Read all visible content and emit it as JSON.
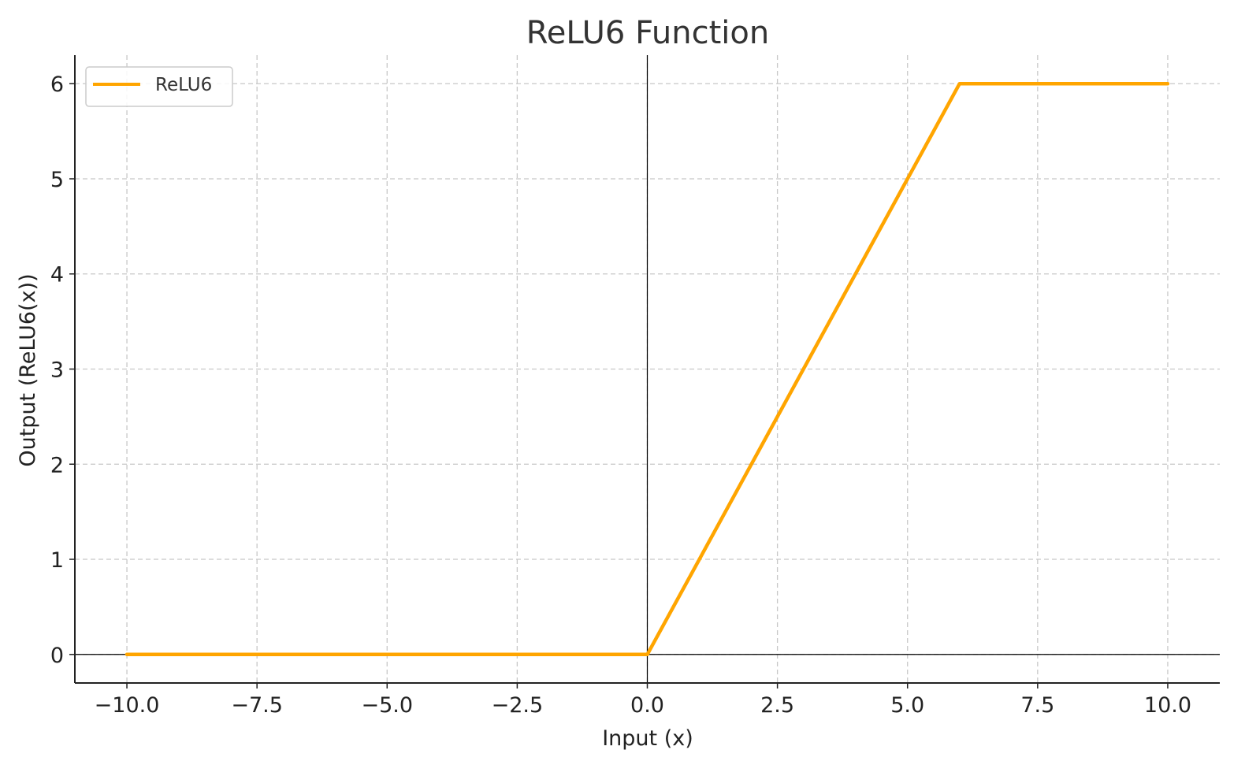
{
  "chart_data": {
    "type": "line",
    "title": "ReLU6 Function",
    "xlabel": "Input (x)",
    "ylabel": "Output (ReLU6(x))",
    "xlim": [
      -11,
      11
    ],
    "ylim": [
      -0.3,
      6.3
    ],
    "x_ticks": [
      -10,
      -7.5,
      -5,
      -2.5,
      0,
      2.5,
      5,
      7.5,
      10
    ],
    "x_tick_labels": [
      "−10.0",
      "−7.5",
      "−5.0",
      "−2.5",
      "0.0",
      "2.5",
      "5.0",
      "7.5",
      "10.0"
    ],
    "y_ticks": [
      0,
      1,
      2,
      3,
      4,
      5,
      6
    ],
    "y_tick_labels": [
      "0",
      "1",
      "2",
      "3",
      "4",
      "5",
      "6"
    ],
    "grid": true,
    "grid_style": "dashed",
    "reference_lines": {
      "x": 0,
      "y": 0
    },
    "legend": {
      "placement": "top-left",
      "entries": [
        "ReLU6"
      ]
    },
    "series": [
      {
        "name": "ReLU6",
        "color": "#ffa500",
        "x": [
          -10,
          0,
          6,
          10
        ],
        "y": [
          0,
          0,
          6,
          6
        ]
      }
    ]
  }
}
